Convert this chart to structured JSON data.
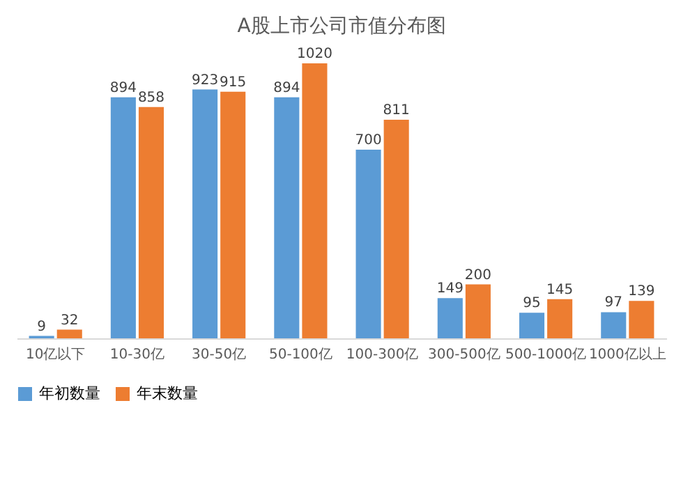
{
  "chart_data": {
    "type": "bar",
    "title": "A股上市公司市值分布图",
    "categories": [
      "10亿以下",
      "10-30亿",
      "30-50亿",
      "50-100亿",
      "100-300亿",
      "300-500亿",
      "500-1000亿",
      "1000亿以上"
    ],
    "series": [
      {
        "name": "年初数量",
        "color": "#5b9bd5",
        "values": [
          9,
          894,
          923,
          894,
          700,
          149,
          95,
          97
        ]
      },
      {
        "name": "年末数量",
        "color": "#ed7d31",
        "values": [
          32,
          858,
          915,
          1020,
          811,
          200,
          145,
          139
        ]
      }
    ],
    "data_labels": true,
    "legend": "bottom",
    "grid": false
  }
}
